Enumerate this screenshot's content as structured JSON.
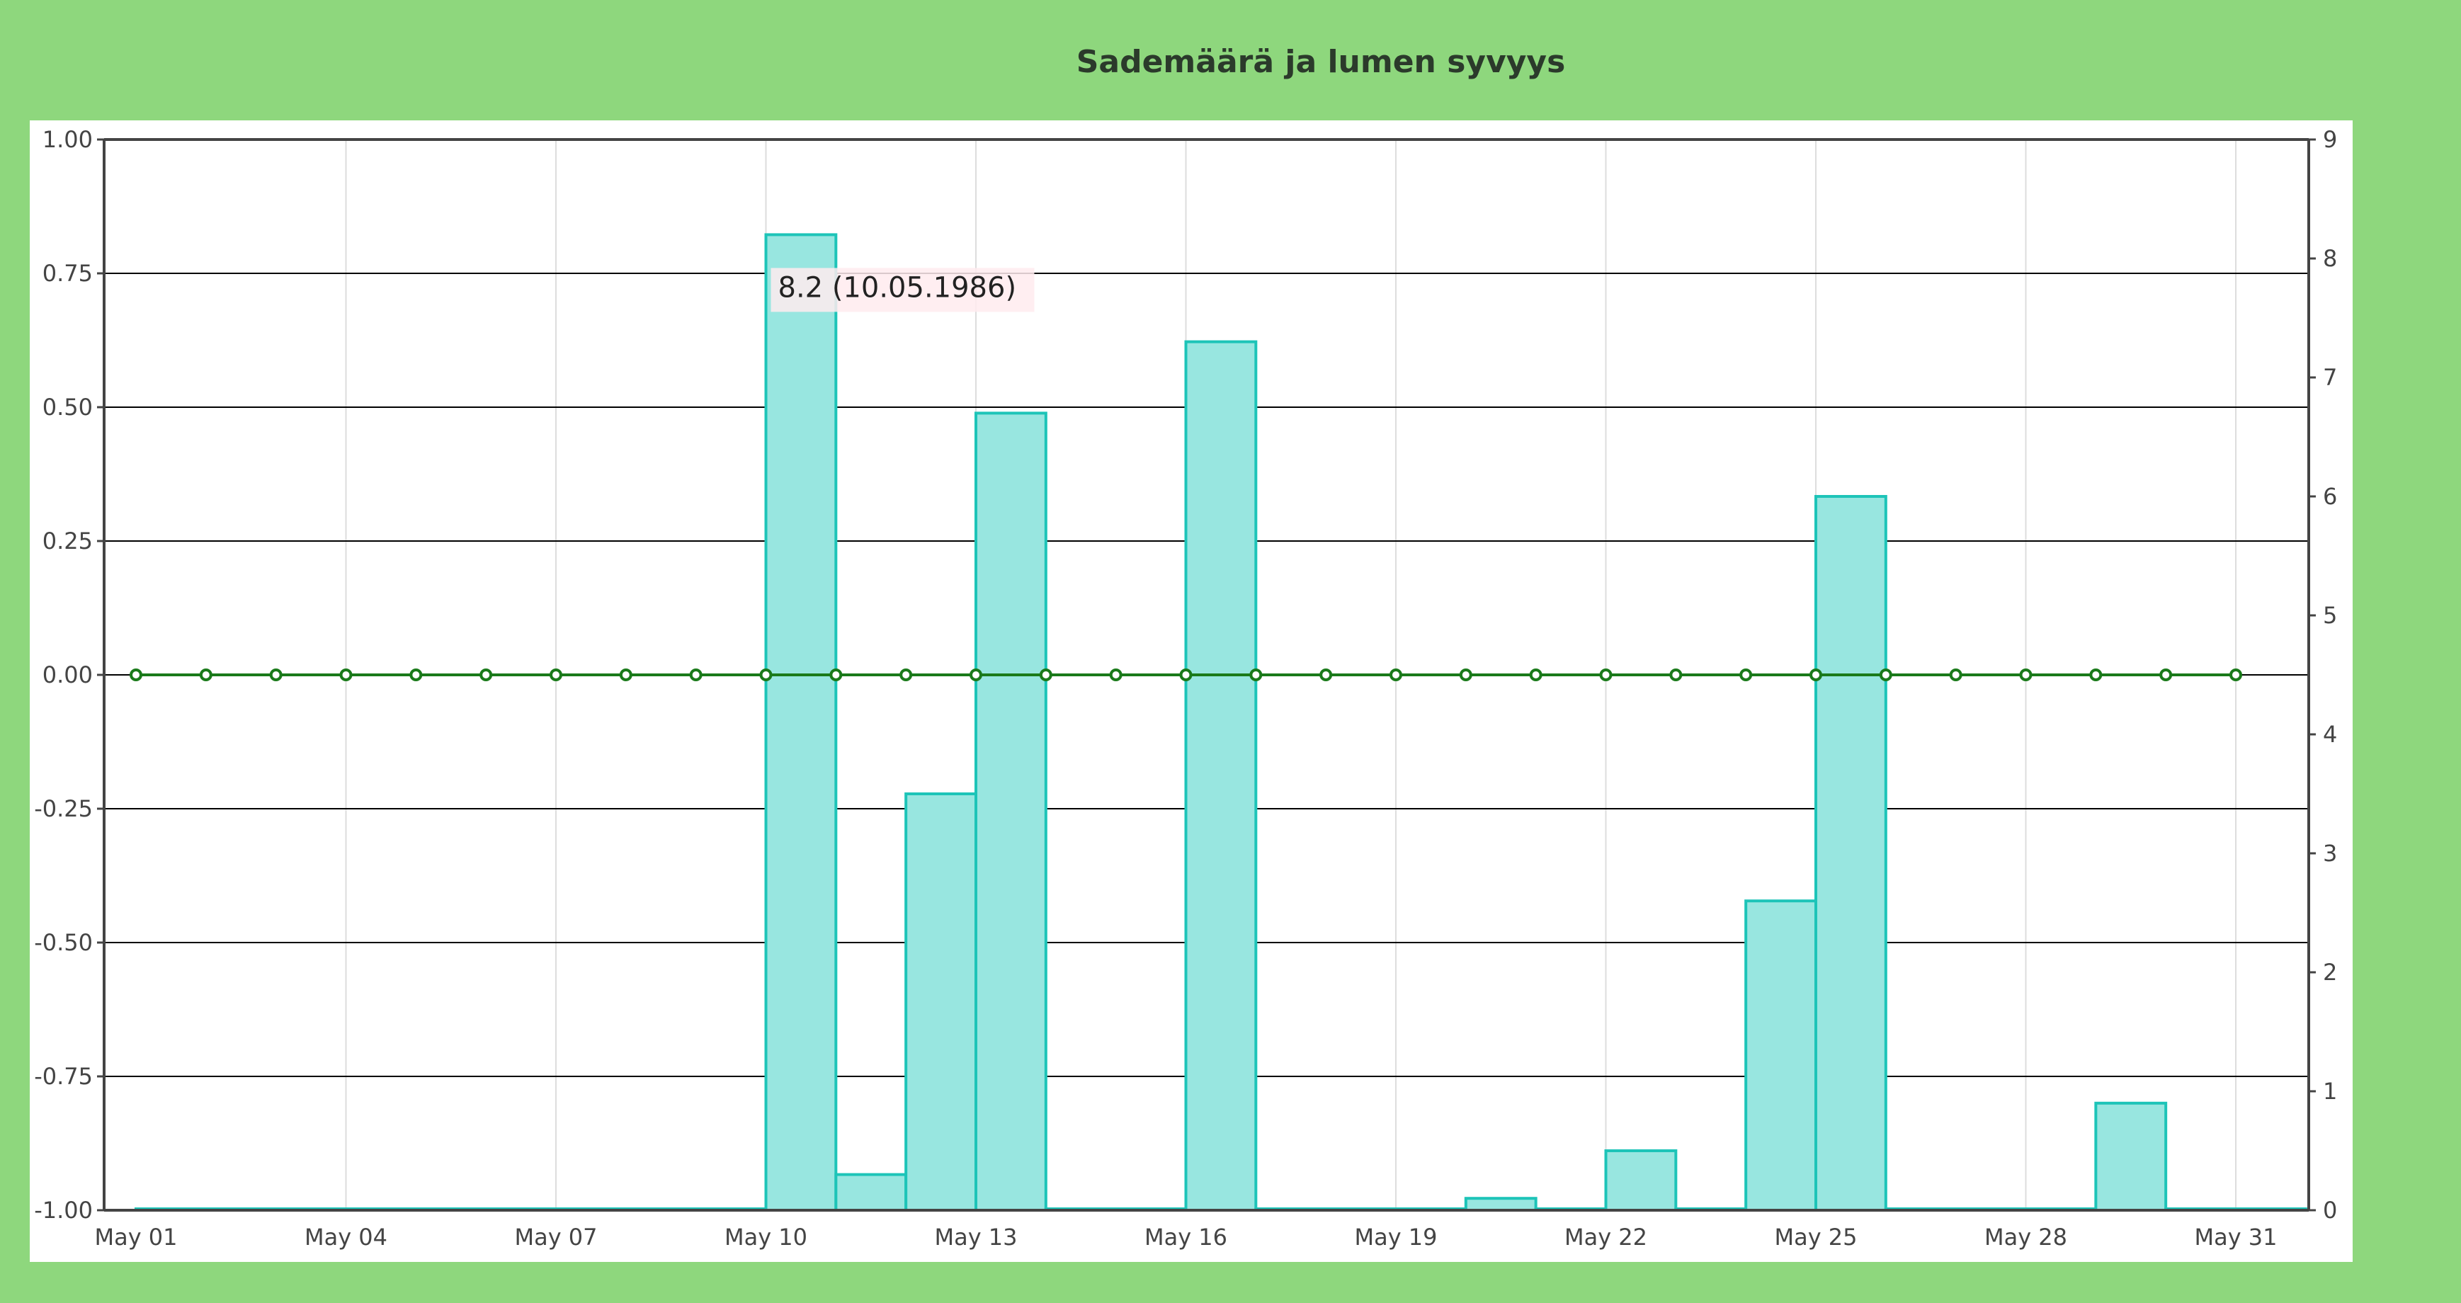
{
  "chart_data": {
    "type": "bar",
    "title": "Sademäärä ja lumen syvyys",
    "x_tick_labels": [
      "May 01",
      "May 04",
      "May 07",
      "May 10",
      "May 13",
      "May 16",
      "May 19",
      "May 22",
      "May 25",
      "May 28",
      "May 31"
    ],
    "x_tick_days": [
      1,
      4,
      7,
      10,
      13,
      16,
      19,
      22,
      25,
      28,
      31
    ],
    "y_left": {
      "ylim": [
        -1,
        1
      ],
      "ticks": [
        "-1.00",
        "-0.75",
        "-0.50",
        "-0.25",
        "0.00",
        "0.25",
        "0.50",
        "0.75",
        "1.00"
      ]
    },
    "y_right": {
      "ylim": [
        0,
        9
      ],
      "ticks": [
        "0",
        "1",
        "2",
        "3",
        "4",
        "5",
        "6",
        "7",
        "8",
        "9"
      ]
    },
    "series": [
      {
        "type": "bar",
        "axis": "right",
        "bar_fill": "#98e6e0",
        "bar_stroke": "#1dc4b8",
        "days": [
          1,
          2,
          3,
          4,
          5,
          6,
          7,
          8,
          9,
          10,
          11,
          12,
          13,
          14,
          15,
          16,
          17,
          18,
          19,
          20,
          21,
          22,
          23,
          24,
          25,
          26,
          27,
          28,
          29,
          30,
          31
        ],
        "values": [
          0,
          0,
          0,
          0,
          0,
          0,
          0,
          0,
          0,
          8.2,
          0.3,
          3.5,
          6.7,
          0,
          0,
          7.3,
          0,
          0,
          0,
          0.1,
          0,
          0.5,
          0,
          2.6,
          6.0,
          0,
          0,
          0,
          0.9,
          0,
          0
        ]
      },
      {
        "type": "line",
        "axis": "left",
        "line_color": "#1a7a1a",
        "days": [
          1,
          2,
          3,
          4,
          5,
          6,
          7,
          8,
          9,
          10,
          11,
          12,
          13,
          14,
          15,
          16,
          17,
          18,
          19,
          20,
          21,
          22,
          23,
          24,
          25,
          26,
          27,
          28,
          29,
          30,
          31
        ],
        "values": [
          0,
          0,
          0,
          0,
          0,
          0,
          0,
          0,
          0,
          0,
          0,
          0,
          0,
          0,
          0,
          0,
          0,
          0,
          0,
          0,
          0,
          0,
          0,
          0,
          0,
          0,
          0,
          0,
          0,
          0,
          0
        ]
      }
    ],
    "tooltip": {
      "text": "8.2 (10.05.1986)",
      "day": 10,
      "value": 8.2
    },
    "grid": {
      "horizontal": true,
      "vertical": true
    }
  },
  "colors": {
    "background": "#8ed77d",
    "plot": "#ffffff",
    "axis": "#444444",
    "grid_h": "#000000",
    "grid_v": "#dddddd"
  }
}
